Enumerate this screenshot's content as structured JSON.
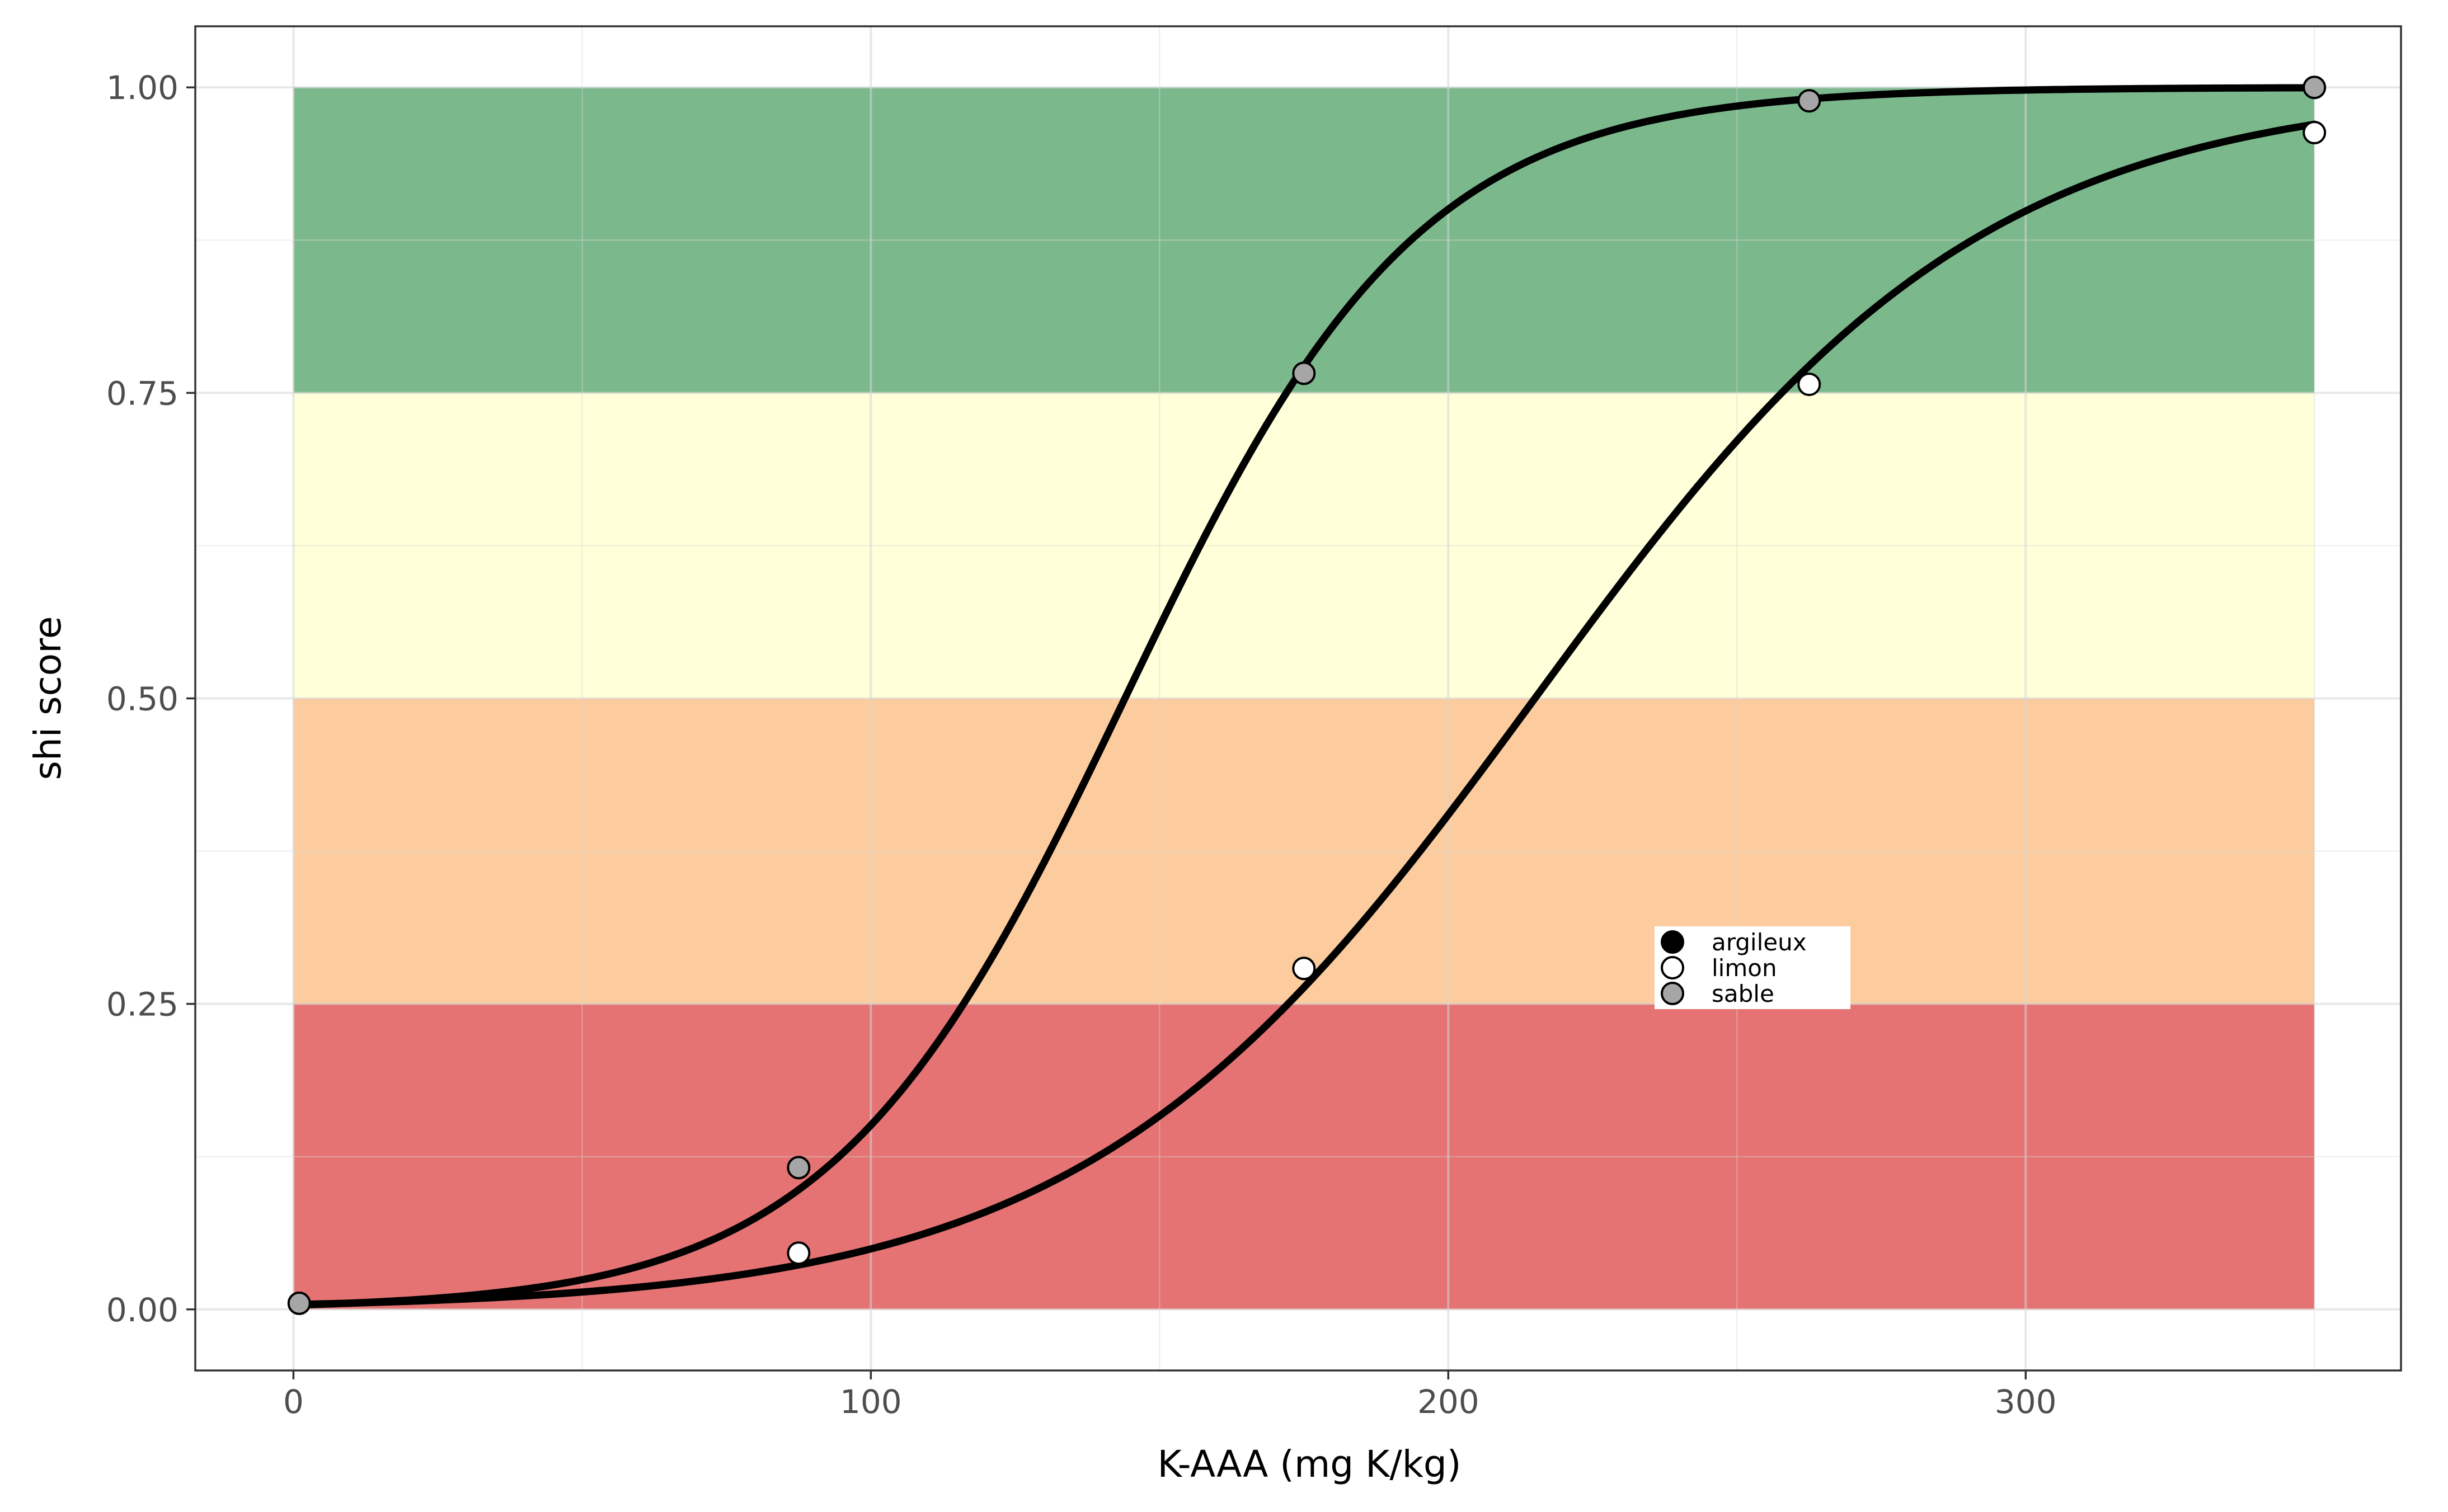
{
  "chart_data": {
    "type": "line",
    "title": "",
    "xlabel": "K-AAA (mg K/kg)",
    "ylabel": "shi score",
    "xlim": [
      -17,
      365
    ],
    "ylim": [
      -0.05,
      1.05
    ],
    "x_ticks": [
      0,
      100,
      200,
      300
    ],
    "x_tick_labels": [
      "0",
      "100",
      "200",
      "300"
    ],
    "y_ticks": [
      0,
      0.25,
      0.5,
      0.75,
      1
    ],
    "y_tick_labels": [
      "0.00",
      "0.25",
      "0.50",
      "0.75",
      "1.00"
    ],
    "grid": true,
    "bands": [
      {
        "y0": 0,
        "y1": 0.25,
        "x0": 0,
        "x1": 350,
        "color": "#e57373"
      },
      {
        "y0": 0.25,
        "y1": 0.5,
        "x0": 0,
        "x1": 350,
        "color": "#fccc9e"
      },
      {
        "y0": 0.5,
        "y1": 0.75,
        "x0": 0,
        "x1": 350,
        "color": "#ffffd9"
      },
      {
        "y0": 0.75,
        "y1": 1.0,
        "x0": 0,
        "x1": 350,
        "color": "#7bb98d"
      }
    ],
    "curves": [
      {
        "x0": 144,
        "k": 0.0393,
        "x_range": [
          1,
          350
        ]
      },
      {
        "x0": 215,
        "k": 0.0257,
        "x_range": [
          1,
          350
        ]
      }
    ],
    "series": [
      {
        "name": "argileux",
        "fill": "#000000",
        "x": [],
        "y": []
      },
      {
        "name": "limon",
        "fill": "#ffffff",
        "x": [
          87.5,
          175,
          262.5,
          350
        ],
        "y": [
          0.046,
          0.279,
          0.757,
          0.963
        ]
      },
      {
        "name": "sable",
        "fill": "#a6a6a6",
        "x": [
          1,
          87.5,
          175,
          262.5,
          350
        ],
        "y": [
          0.005,
          0.116,
          0.766,
          0.989,
          1.0
        ]
      }
    ],
    "legend": {
      "position": "inside-center-right",
      "entries": [
        "argileux",
        "limon",
        "sable"
      ]
    }
  }
}
